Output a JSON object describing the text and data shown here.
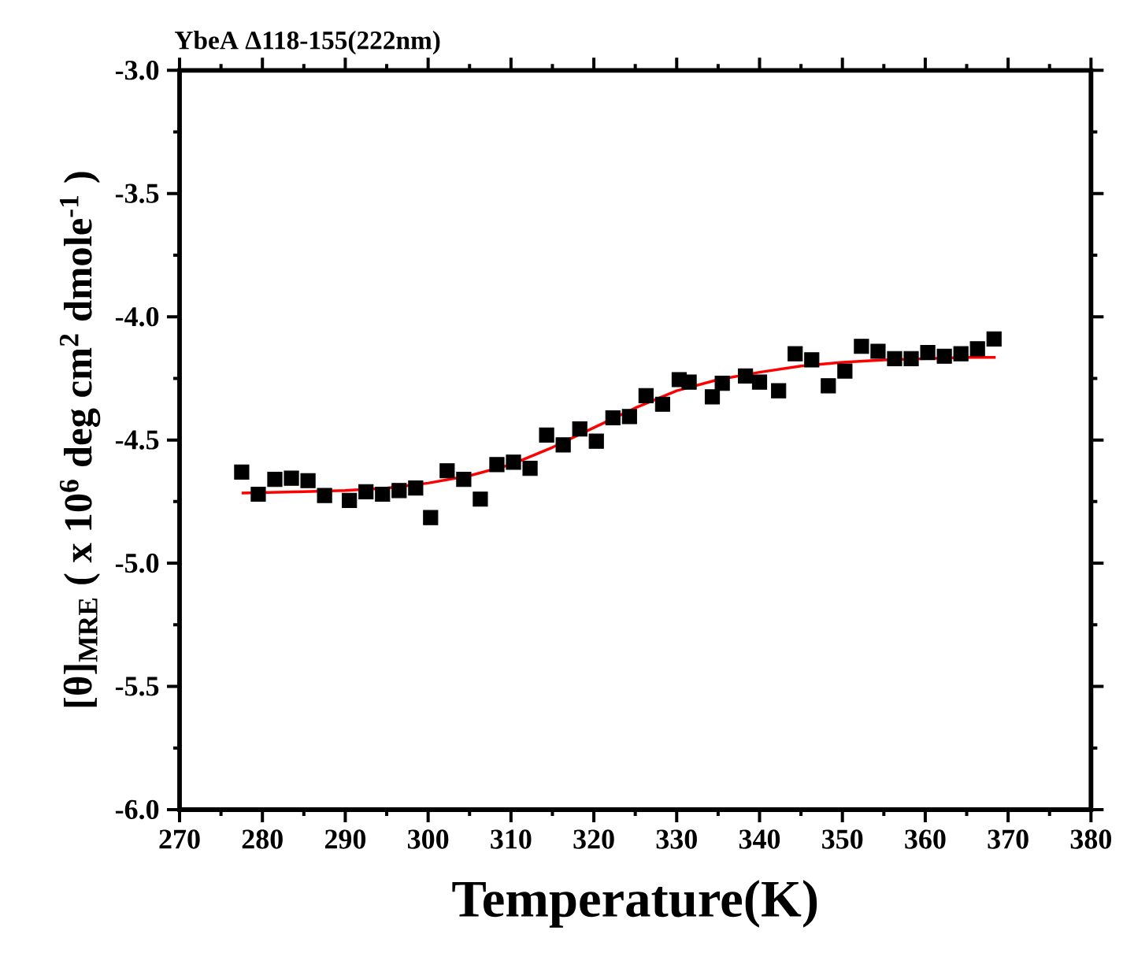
{
  "chart_data": {
    "type": "scatter",
    "title": "YbeA Δ118-155(222nm)",
    "xlabel": "Temperature(K)",
    "ylabel": "[θ]$_{MRE}$ ( x 10$^{6}$ deg cm$^{2}$ dmole$^{-1}$ )",
    "xlim": [
      270,
      380
    ],
    "ylim": [
      -6,
      -3
    ],
    "xticks": [
      270,
      280,
      290,
      300,
      310,
      320,
      330,
      340,
      350,
      360,
      370,
      380
    ],
    "yticks": [
      {
        "value": -6,
        "label": "-6.0"
      },
      {
        "value": -5.5,
        "label": "-5.5"
      },
      {
        "value": -5,
        "label": "-5.0"
      },
      {
        "value": -4.5,
        "label": "-4.5"
      },
      {
        "value": -4,
        "label": "-4.0"
      },
      {
        "value": -3.5,
        "label": "-3.5"
      },
      {
        "value": -3,
        "label": "-3.0"
      }
    ],
    "grid": false,
    "series": [
      {
        "color": "#000000",
        "marker": "square",
        "x": [
          277.5,
          279.5,
          281.5,
          283.5,
          285.5,
          287.5,
          290.5,
          292.5,
          294.5,
          296.5,
          298.5,
          300.3,
          302.3,
          304.3,
          306.3,
          308.3,
          310.3,
          312.3,
          314.3,
          316.3,
          318.3,
          320.3,
          322.3,
          324.3,
          326.3,
          328.3,
          330.3,
          331.5,
          334.3,
          335.5,
          338.3,
          340,
          342.3,
          344.3,
          346.3,
          348.3,
          350.3,
          352.3,
          354.3,
          356.3,
          358.3,
          360.3,
          362.3,
          364.3,
          366.3,
          368.3
        ],
        "values": [
          -4.63,
          -4.72,
          -4.66,
          -4.655,
          -4.665,
          -4.725,
          -4.745,
          -4.71,
          -4.72,
          -4.705,
          -4.695,
          -4.815,
          -4.625,
          -4.66,
          -4.74,
          -4.6,
          -4.59,
          -4.615,
          -4.48,
          -4.52,
          -4.455,
          -4.505,
          -4.41,
          -4.405,
          -4.32,
          -4.355,
          -4.255,
          -4.265,
          -4.325,
          -4.27,
          -4.24,
          -4.265,
          -4.3,
          -4.15,
          -4.175,
          -4.28,
          -4.22,
          -4.12,
          -4.14,
          -4.17,
          -4.17,
          -4.145,
          -4.16,
          -4.15,
          -4.13,
          -4.09
        ]
      },
      {
        "type": "line",
        "color": "#ff0000",
        "marker": "none",
        "line_style": "solid",
        "x": [
          277.5,
          285,
          290,
          295,
          300,
          305,
          310,
          315,
          320,
          325,
          330,
          335,
          340,
          345,
          350,
          355,
          360,
          365,
          368.5
        ],
        "values": [
          -4.715,
          -4.71,
          -4.705,
          -4.695,
          -4.675,
          -4.645,
          -4.6,
          -4.53,
          -4.45,
          -4.37,
          -4.3,
          -4.255,
          -4.225,
          -4.2,
          -4.185,
          -4.175,
          -4.17,
          -4.165,
          -4.165
        ]
      }
    ]
  }
}
